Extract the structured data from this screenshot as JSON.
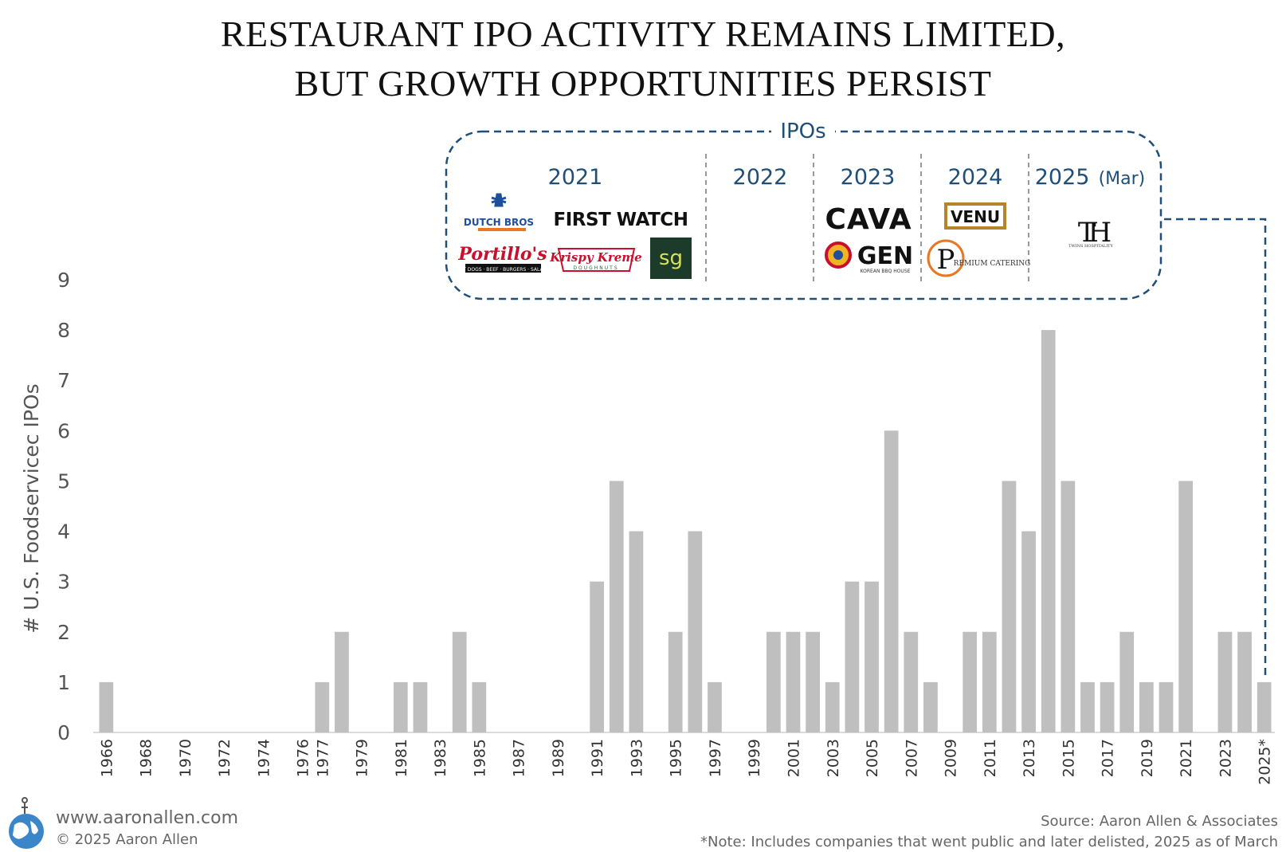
{
  "title_line1": "RESTAURANT IPO ACTIVITY REMAINS LIMITED,",
  "title_line2": "BUT GROWTH OPPORTUNITIES PERSIST",
  "ipo_box": {
    "label": "IPOs",
    "columns": [
      {
        "year": "2021",
        "companies": [
          "DUTCH BROS",
          "FIRST WATCH",
          "Portillo's",
          "Krispy Kreme",
          "sg"
        ]
      },
      {
        "year": "2022",
        "companies": []
      },
      {
        "year": "2023",
        "companies": [
          "CAVA",
          "GEN"
        ]
      },
      {
        "year": "2024",
        "companies": [
          "VENU",
          "PREMIUM CATERING"
        ]
      },
      {
        "year": "2025",
        "year_note": "(Mar)",
        "companies": [
          "TH"
        ]
      }
    ],
    "logo_text": {
      "dutch_bros": "DUTCH BROS",
      "first_watch": "FIRST WATCH",
      "portillos": "Portillo's",
      "portillos_sub": "HOT DOGS · BEEF · BURGERS · SALADS",
      "krispy": "Krispy Kreme",
      "krispy_sub": "DOUGHNUTS",
      "sg": "sg",
      "cava": "CAVA",
      "gen": "GEN",
      "gen_sub": "KOREAN BBQ HOUSE",
      "venu": "VENU",
      "premium_p": "P",
      "premium": "REMIUM CATERING",
      "twins_mark": "TH",
      "twins": "TWINS HOSPITALITY"
    }
  },
  "footer": {
    "website": "www.aaronallen.com",
    "copyright": "© 2025 Aaron Allen",
    "source": "Source: Aaron Allen & Associates",
    "note": "*Note: Includes companies that went public and later delisted, 2025 as of March"
  },
  "colors": {
    "bar": "#bfbfbf",
    "accent": "#1f4e79",
    "text": "#555555"
  },
  "chart_data": {
    "type": "bar",
    "title": "RESTAURANT IPO ACTIVITY REMAINS LIMITED, BUT GROWTH OPPORTUNITIES PERSIST",
    "ylabel": "# U.S. Foodservicec IPOs",
    "xlabel": "",
    "ylim": [
      0,
      9
    ],
    "yticks": [
      0,
      1,
      2,
      3,
      4,
      5,
      6,
      7,
      8,
      9
    ],
    "categories": [
      "1966",
      "1967",
      "1968",
      "1969",
      "1970",
      "1971",
      "1972",
      "1973",
      "1974",
      "1975",
      "1976",
      "1977",
      "1978",
      "1979",
      "1980",
      "1981",
      "1982",
      "1983",
      "1984",
      "1985",
      "1986",
      "1987",
      "1988",
      "1989",
      "1990",
      "1991",
      "1992",
      "1993",
      "1994",
      "1995",
      "1996",
      "1997",
      "1998",
      "1999",
      "2000",
      "2001",
      "2002",
      "2003",
      "2004",
      "2005",
      "2006",
      "2007",
      "2008",
      "2009",
      "2010",
      "2011",
      "2012",
      "2013",
      "2014",
      "2015",
      "2016",
      "2017",
      "2018",
      "2019",
      "2020",
      "2021",
      "2022",
      "2023",
      "2024",
      "2025*"
    ],
    "tick_labels": [
      "1966",
      "1968",
      "1970",
      "1972",
      "1974",
      "1976",
      "1977",
      "1979",
      "1981",
      "1983",
      "1985",
      "1987",
      "1989",
      "1991",
      "1993",
      "1995",
      "1997",
      "1999",
      "2001",
      "2003",
      "2005",
      "2007",
      "2009",
      "2011",
      "2013",
      "2015",
      "2017",
      "2019",
      "2021",
      "2023",
      "2025*"
    ],
    "values": [
      1,
      0,
      0,
      0,
      0,
      0,
      0,
      0,
      0,
      0,
      0,
      1,
      2,
      0,
      0,
      1,
      1,
      0,
      2,
      1,
      0,
      0,
      0,
      0,
      0,
      3,
      5,
      4,
      0,
      2,
      4,
      1,
      0,
      0,
      2,
      2,
      2,
      1,
      3,
      3,
      6,
      2,
      1,
      0,
      2,
      2,
      5,
      4,
      8,
      5,
      1,
      1,
      2,
      1,
      1,
      5,
      0,
      2,
      2,
      1
    ],
    "grid": false,
    "legend": "none"
  }
}
